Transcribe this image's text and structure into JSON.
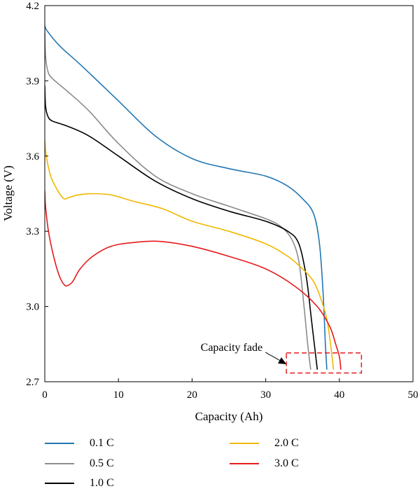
{
  "chart_data": {
    "type": "line",
    "title": "",
    "xlabel": "Capacity (Ah)",
    "ylabel": "Voltage (V)",
    "xlim": [
      0,
      50
    ],
    "ylim": [
      2.7,
      4.2
    ],
    "xticks": [
      0,
      10,
      20,
      30,
      40,
      50
    ],
    "yticks": [
      2.7,
      3.0,
      3.3,
      3.6,
      3.9,
      4.2
    ],
    "xtick_labels": [
      "0",
      "10",
      "20",
      "30",
      "40",
      "50"
    ],
    "ytick_labels": [
      "2.7",
      "3.0",
      "3.3",
      "3.6",
      "3.9",
      "4.2"
    ],
    "grid": false,
    "legend_position": "bottom",
    "series": [
      {
        "name": "0.1 C",
        "color": "#2277b4",
        "x": [
          0,
          0.3,
          2,
          5,
          10,
          15,
          20,
          25,
          30,
          33,
          35,
          36.5,
          37.3,
          37.8,
          38.1,
          38.3
        ],
        "y": [
          4.12,
          4.1,
          4.04,
          3.96,
          3.82,
          3.68,
          3.59,
          3.55,
          3.52,
          3.48,
          3.43,
          3.37,
          3.25,
          3.05,
          2.85,
          2.75
        ]
      },
      {
        "name": "0.5 C",
        "color": "#8c8c8c",
        "x": [
          0,
          0.1,
          0.4,
          1,
          3,
          6,
          10,
          15,
          20,
          25,
          30,
          32,
          33.5,
          34.5,
          35.2,
          35.7,
          36.1
        ],
        "y": [
          4.1,
          4.0,
          3.94,
          3.91,
          3.86,
          3.78,
          3.65,
          3.52,
          3.45,
          3.4,
          3.35,
          3.32,
          3.27,
          3.18,
          3.0,
          2.85,
          2.75
        ]
      },
      {
        "name": "1.0 C",
        "color": "#000000",
        "x": [
          0,
          0.1,
          0.4,
          1,
          3,
          6,
          10,
          15,
          20,
          25,
          30,
          33,
          34.5,
          35.5,
          36.2,
          36.6,
          37
        ],
        "y": [
          3.88,
          3.8,
          3.76,
          3.74,
          3.72,
          3.68,
          3.6,
          3.5,
          3.43,
          3.38,
          3.34,
          3.3,
          3.25,
          3.12,
          2.95,
          2.85,
          2.75
        ]
      },
      {
        "name": "2.0 C",
        "color": "#f0b800",
        "x": [
          0,
          0.2,
          0.8,
          1.8,
          2.6,
          3.3,
          4.5,
          6.5,
          9,
          12,
          16,
          20,
          25,
          30,
          33,
          35,
          36.5,
          37.5,
          38.3,
          38.8,
          39.2
        ],
        "y": [
          3.66,
          3.6,
          3.52,
          3.46,
          3.43,
          3.435,
          3.445,
          3.45,
          3.445,
          3.42,
          3.39,
          3.34,
          3.3,
          3.25,
          3.2,
          3.15,
          3.1,
          3.03,
          2.95,
          2.85,
          2.75
        ]
      },
      {
        "name": "3.0 C",
        "color": "#e41a1c",
        "x": [
          0,
          0.1,
          0.5,
          1.2,
          2,
          2.7,
          3.2,
          3.8,
          4.8,
          6.5,
          9,
          12,
          15.5,
          20,
          25,
          30,
          34,
          37,
          38.7,
          39.5,
          40,
          40.2
        ],
        "y": [
          3.46,
          3.4,
          3.3,
          3.2,
          3.12,
          3.085,
          3.085,
          3.1,
          3.15,
          3.2,
          3.24,
          3.255,
          3.26,
          3.24,
          3.2,
          3.15,
          3.08,
          3.0,
          2.92,
          2.85,
          2.8,
          2.75
        ]
      }
    ],
    "annotations": [
      {
        "text": "Capacity fade",
        "arrow_to": [
          32.8,
          2.77
        ],
        "box": {
          "x0": 32.8,
          "x1": 43,
          "y0": 2.735,
          "y1": 2.815
        }
      }
    ]
  }
}
